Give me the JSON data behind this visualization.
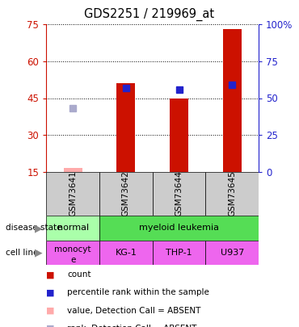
{
  "title": "GDS2251 / 219969_at",
  "samples": [
    "GSM73641",
    "GSM73642",
    "GSM73644",
    "GSM73645"
  ],
  "bar_values": [
    null,
    51,
    45,
    73
  ],
  "bar_color": "#cc1100",
  "absent_bar_values": [
    16.5,
    null,
    null,
    null
  ],
  "absent_bar_color": "#ffaaaa",
  "rank_values": [
    null,
    57,
    56,
    59
  ],
  "rank_color": "#2222cc",
  "absent_rank_values": [
    43,
    null,
    null,
    null
  ],
  "absent_rank_color": "#aaaacc",
  "ylim_left": [
    15,
    75
  ],
  "ylim_right": [
    0,
    100
  ],
  "yticks_left": [
    15,
    30,
    45,
    60,
    75
  ],
  "yticks_right": [
    0,
    25,
    50,
    75,
    100
  ],
  "ytick_labels_right": [
    "0",
    "25",
    "50",
    "75",
    "100%"
  ],
  "disease_state_colors": [
    "#aaffaa",
    "#55dd55"
  ],
  "cell_lines": [
    "monocyte",
    "KG-1",
    "THP-1",
    "U937"
  ],
  "cell_line_color": "#ee66ee",
  "sample_header_color": "#cccccc",
  "legend_items": [
    {
      "label": "count",
      "color": "#cc1100"
    },
    {
      "label": "percentile rank within the sample",
      "color": "#2222cc"
    },
    {
      "label": "value, Detection Call = ABSENT",
      "color": "#ffaaaa"
    },
    {
      "label": "rank, Detection Call = ABSENT",
      "color": "#aaaacc"
    }
  ],
  "left_axis_color": "#cc1100",
  "right_axis_color": "#2222cc"
}
